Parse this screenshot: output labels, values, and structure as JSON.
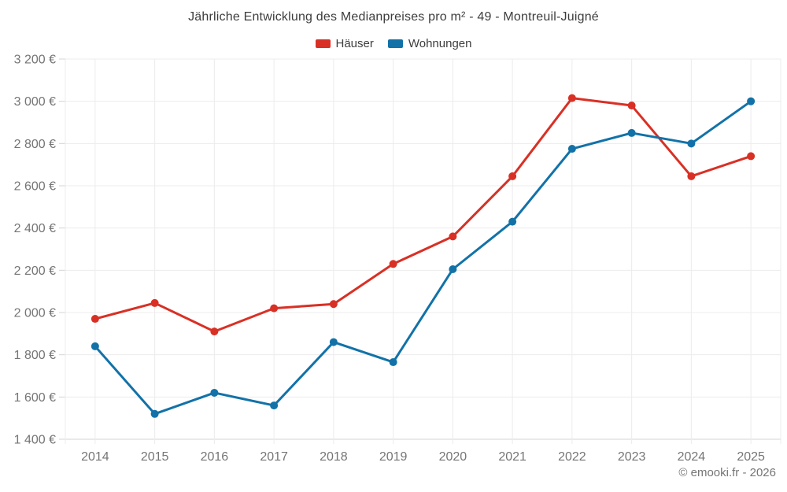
{
  "page": {
    "footer": "© emooki.fr - 2026"
  },
  "colors": {
    "hauser_red": "#d93025",
    "wohnungen_blue": "#1272a8",
    "gridline": "#ececec",
    "axis_line": "#d4d4d4",
    "tick_text": "#757575",
    "title_text": "#3d3d3d"
  },
  "chart_data": {
    "type": "line",
    "title": "Jährliche Entwicklung des Medianpreises pro m² - 49 - Montreuil-Juigné",
    "categories": [
      "2014",
      "2015",
      "2016",
      "2017",
      "2018",
      "2019",
      "2020",
      "2021",
      "2022",
      "2023",
      "2024",
      "2025"
    ],
    "series": [
      {
        "name": "Häuser",
        "color": "#d93025",
        "values": [
          1970,
          2045,
          1910,
          2020,
          2040,
          2230,
          2360,
          2645,
          3015,
          2980,
          2645,
          2740
        ]
      },
      {
        "name": "Wohnungen",
        "color": "#1272a8",
        "values": [
          1840,
          1520,
          1620,
          1560,
          1860,
          1765,
          2205,
          2430,
          2775,
          2850,
          2800,
          3000
        ]
      }
    ],
    "ylim": [
      1400,
      3200
    ],
    "ytick_step": 200,
    "ytick_labels": [
      "1 400 €",
      "1 600 €",
      "1 800 €",
      "2 000 €",
      "2 200 €",
      "2 400 €",
      "2 600 €",
      "2 800 €",
      "3 000 €",
      "3 200 €"
    ],
    "xlabel": "",
    "ylabel": "",
    "grid": true,
    "legend_position": "top",
    "line_width": 3,
    "point_radius": 5
  }
}
